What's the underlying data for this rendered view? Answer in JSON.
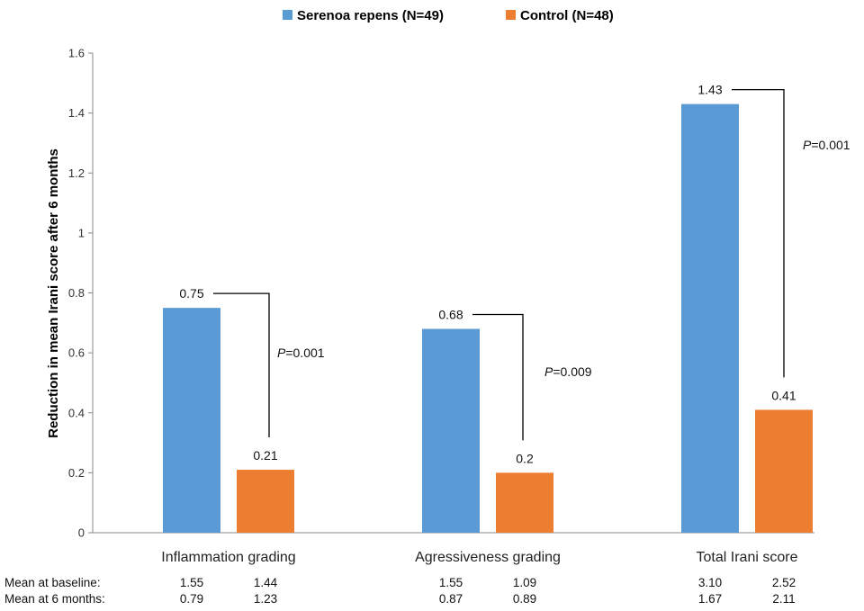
{
  "chart_data": {
    "type": "bar",
    "ylabel": "Reduction in mean Irani score after 6 months",
    "ylim": [
      0,
      1.6
    ],
    "yticks": [
      0,
      0.2,
      0.4,
      0.6,
      0.8,
      1,
      1.2,
      1.4,
      1.6
    ],
    "ytick_labels": [
      "0",
      "0.2",
      "0.4",
      "0.6",
      "0.8",
      "1",
      "1.2",
      "1.4",
      "1.6"
    ],
    "legend_position": "top-center",
    "grid": false,
    "categories": [
      "Inflammation grading",
      "Agressiveness grading",
      "Total Irani score"
    ],
    "series": [
      {
        "name": "Serenoa repens (N=49)",
        "color": "#5b9bd5",
        "values": [
          0.75,
          0.68,
          1.43
        ],
        "labels": [
          "0.75",
          "0.68",
          "1.43"
        ]
      },
      {
        "name": "Control (N=48)",
        "color": "#ed7d31",
        "values": [
          0.21,
          0.2,
          0.41
        ],
        "labels": [
          "0.21",
          "0.2",
          "0.41"
        ]
      }
    ],
    "p_values": [
      {
        "p": "P",
        "rest": "=0.001"
      },
      {
        "p": "P",
        "rest": "=0.009"
      },
      {
        "p": "P",
        "rest": "=0.001"
      }
    ],
    "table": {
      "rows": [
        {
          "label": "Mean at baseline:",
          "values": [
            [
              "1.55",
              "1.44"
            ],
            [
              "1.55",
              "1.09"
            ],
            [
              "3.10",
              "2.52"
            ]
          ]
        },
        {
          "label": "Mean at 6 months:",
          "values": [
            [
              "0.79",
              "1.23"
            ],
            [
              "0.87",
              "0.89"
            ],
            [
              "1.67",
              "2.11"
            ]
          ]
        }
      ]
    }
  }
}
